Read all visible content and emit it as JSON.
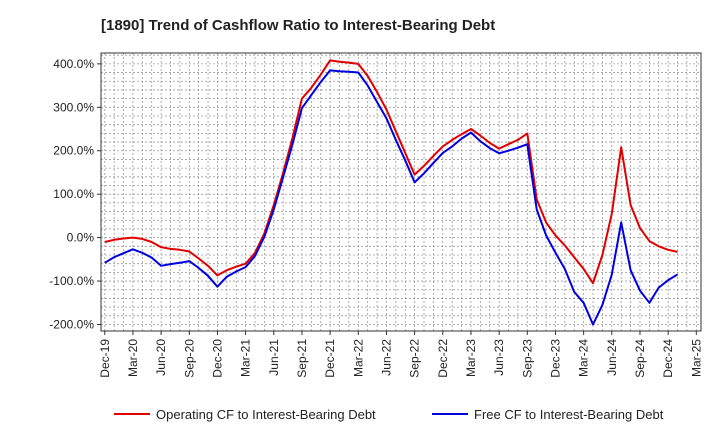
{
  "chart_data": {
    "type": "line",
    "title": "[1890]  Trend of Cashflow Ratio to Interest-Bearing Debt",
    "xlabel": "",
    "ylabel": "",
    "ylim": [
      -200,
      400
    ],
    "y_ticks": [
      "400.0%",
      "300.0%",
      "200.0%",
      "100.0%",
      "0.0%",
      "-100.0%",
      "-200.0%"
    ],
    "x_ticks": [
      "Dec-19",
      "Mar-20",
      "Jun-20",
      "Sep-20",
      "Dec-20",
      "Mar-21",
      "Jun-21",
      "Sep-21",
      "Dec-21",
      "Mar-22",
      "Jun-22",
      "Sep-22",
      "Dec-22",
      "Mar-23",
      "Jun-23",
      "Sep-23",
      "Dec-23",
      "Mar-24",
      "Jun-24",
      "Sep-24",
      "Dec-24",
      "Mar-25"
    ],
    "grid": true,
    "legend_position": "bottom",
    "series": [
      {
        "name": "Operating CF to Interest-Bearing Debt",
        "color": "#e00000",
        "points": [
          [
            "Dec-19",
            -10
          ],
          [
            "Jan-20",
            -5
          ],
          [
            "Feb-20",
            -2
          ],
          [
            "Mar-20",
            0
          ],
          [
            "Apr-20",
            -3
          ],
          [
            "May-20",
            -10
          ],
          [
            "Jun-20",
            -22
          ],
          [
            "Jul-20",
            -26
          ],
          [
            "Aug-20",
            -28
          ],
          [
            "Sep-20",
            -32
          ],
          [
            "Oct-20",
            -48
          ],
          [
            "Nov-20",
            -65
          ],
          [
            "Dec-20",
            -87
          ],
          [
            "Jan-21",
            -75
          ],
          [
            "Feb-21",
            -67
          ],
          [
            "Mar-21",
            -60
          ],
          [
            "Apr-21",
            -35
          ],
          [
            "May-21",
            10
          ],
          [
            "Jun-21",
            75
          ],
          [
            "Jul-21",
            150
          ],
          [
            "Aug-21",
            230
          ],
          [
            "Sep-21",
            320
          ],
          [
            "Oct-21",
            345
          ],
          [
            "Nov-21",
            375
          ],
          [
            "Dec-21",
            408
          ],
          [
            "Jan-22",
            405
          ],
          [
            "Feb-22",
            403
          ],
          [
            "Mar-22",
            400
          ],
          [
            "Apr-22",
            372
          ],
          [
            "May-22",
            335
          ],
          [
            "Jun-22",
            295
          ],
          [
            "Jul-22",
            245
          ],
          [
            "Aug-22",
            195
          ],
          [
            "Sep-22",
            145
          ],
          [
            "Oct-22",
            165
          ],
          [
            "Nov-22",
            188
          ],
          [
            "Dec-22",
            210
          ],
          [
            "Jan-23",
            225
          ],
          [
            "Feb-23",
            238
          ],
          [
            "Mar-23",
            250
          ],
          [
            "Apr-23",
            235
          ],
          [
            "May-23",
            218
          ],
          [
            "Jun-23",
            205
          ],
          [
            "Jul-23",
            215
          ],
          [
            "Aug-23",
            225
          ],
          [
            "Sep-23",
            240
          ],
          [
            "Oct-23",
            88
          ],
          [
            "Nov-23",
            35
          ],
          [
            "Dec-23",
            5
          ],
          [
            "Jan-24",
            -18
          ],
          [
            "Feb-24",
            -45
          ],
          [
            "Mar-24",
            -72
          ],
          [
            "Apr-24",
            -105
          ],
          [
            "May-24",
            -40
          ],
          [
            "Jun-24",
            55
          ],
          [
            "Jul-24",
            208
          ],
          [
            "Aug-24",
            75
          ],
          [
            "Sep-24",
            22
          ],
          [
            "Oct-24",
            -8
          ],
          [
            "Nov-24",
            -20
          ],
          [
            "Dec-24",
            -28
          ],
          [
            "Jan-25",
            -33
          ]
        ]
      },
      {
        "name": "Free CF to Interest-Bearing Debt",
        "color": "#0000e0",
        "points": [
          [
            "Dec-19",
            -58
          ],
          [
            "Jan-20",
            -45
          ],
          [
            "Feb-20",
            -36
          ],
          [
            "Mar-20",
            -27
          ],
          [
            "Apr-20",
            -35
          ],
          [
            "May-20",
            -46
          ],
          [
            "Jun-20",
            -65
          ],
          [
            "Jul-20",
            -61
          ],
          [
            "Aug-20",
            -58
          ],
          [
            "Sep-20",
            -54
          ],
          [
            "Oct-20",
            -70
          ],
          [
            "Nov-20",
            -88
          ],
          [
            "Dec-20",
            -113
          ],
          [
            "Jan-21",
            -90
          ],
          [
            "Feb-21",
            -78
          ],
          [
            "Mar-21",
            -68
          ],
          [
            "Apr-21",
            -42
          ],
          [
            "May-21",
            2
          ],
          [
            "Jun-21",
            65
          ],
          [
            "Jul-21",
            140
          ],
          [
            "Aug-21",
            215
          ],
          [
            "Sep-21",
            298
          ],
          [
            "Oct-21",
            328
          ],
          [
            "Nov-21",
            358
          ],
          [
            "Dec-21",
            385
          ],
          [
            "Jan-22",
            383
          ],
          [
            "Feb-22",
            382
          ],
          [
            "Mar-22",
            380
          ],
          [
            "Apr-22",
            350
          ],
          [
            "May-22",
            312
          ],
          [
            "Jun-22",
            275
          ],
          [
            "Jul-22",
            225
          ],
          [
            "Aug-22",
            178
          ],
          [
            "Sep-22",
            127
          ],
          [
            "Oct-22",
            148
          ],
          [
            "Nov-22",
            172
          ],
          [
            "Dec-22",
            195
          ],
          [
            "Jan-23",
            210
          ],
          [
            "Feb-23",
            228
          ],
          [
            "Mar-23",
            242
          ],
          [
            "Apr-23",
            222
          ],
          [
            "May-23",
            206
          ],
          [
            "Jun-23",
            194
          ],
          [
            "Jul-23",
            200
          ],
          [
            "Aug-23",
            207
          ],
          [
            "Sep-23",
            215
          ],
          [
            "Oct-23",
            65
          ],
          [
            "Nov-23",
            5
          ],
          [
            "Dec-23",
            -35
          ],
          [
            "Jan-24",
            -72
          ],
          [
            "Feb-24",
            -125
          ],
          [
            "Mar-24",
            -150
          ],
          [
            "Apr-24",
            -200
          ],
          [
            "May-24",
            -155
          ],
          [
            "Jun-24",
            -85
          ],
          [
            "Jul-24",
            35
          ],
          [
            "Aug-24",
            -75
          ],
          [
            "Sep-24",
            -122
          ],
          [
            "Oct-24",
            -150
          ],
          [
            "Nov-24",
            -115
          ],
          [
            "Dec-24",
            -98
          ],
          [
            "Jan-25",
            -85
          ]
        ]
      }
    ]
  }
}
